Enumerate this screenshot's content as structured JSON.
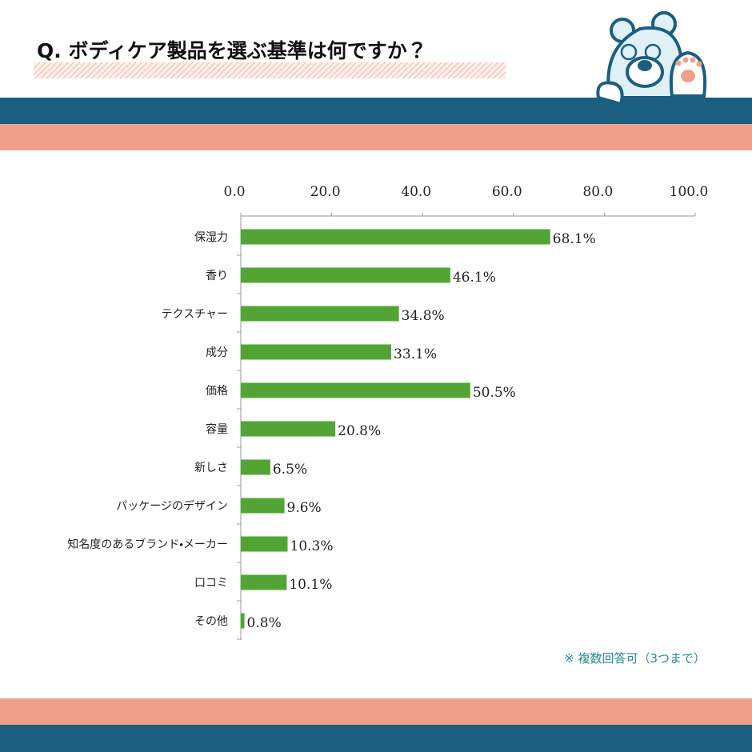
{
  "chart_data": {
    "type": "bar",
    "orientation": "horizontal",
    "title": "Q. ボディケア製品を選ぶ基準は何ですか？",
    "categories": [
      "保湿力",
      "香り",
      "テクスチャー",
      "成分",
      "価格",
      "容量",
      "新しさ",
      "パッケージのデザイン",
      "知名度のあるブランド・メーカー",
      "口コミ",
      "その他"
    ],
    "values": [
      68.1,
      46.1,
      34.8,
      33.1,
      50.5,
      20.8,
      6.5,
      9.6,
      10.3,
      10.1,
      0.8
    ],
    "value_labels": [
      "68.1%",
      "46.1%",
      "34.8%",
      "33.1%",
      "50.5%",
      "20.8%",
      "6.5%",
      "9.6%",
      "10.3%",
      "10.1%",
      "0.8%"
    ],
    "color": "#52a535",
    "xlim": [
      0,
      100
    ],
    "xticks": [
      {
        "value": 0,
        "label": "0.0"
      },
      {
        "value": 20,
        "label": "20.0"
      },
      {
        "value": 40,
        "label": "40.0"
      },
      {
        "value": 60,
        "label": "60.0"
      },
      {
        "value": 80,
        "label": "80.0"
      },
      {
        "value": 100,
        "label": "100.0"
      }
    ],
    "note": "※ 複数回答可（3つまで）"
  }
}
